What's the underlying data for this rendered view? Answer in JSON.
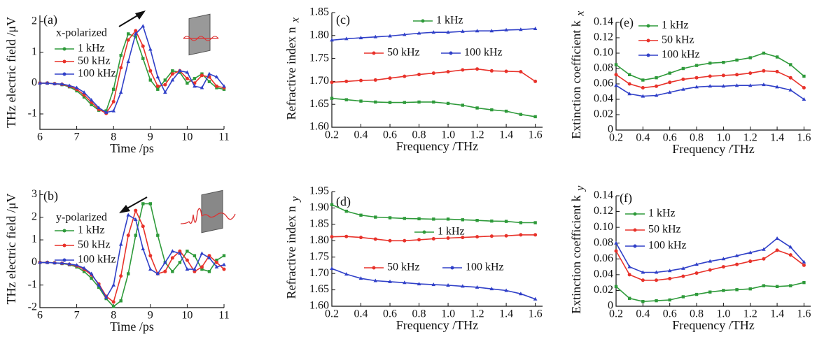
{
  "chart_data": [
    {
      "type": "line",
      "label": "(a)",
      "annotation": "x-polarized",
      "x_label": "Time /ps",
      "y_label": "THz electric field /μV",
      "x": [
        6,
        6.2,
        6.4,
        6.6,
        6.8,
        7,
        7.2,
        7.4,
        7.6,
        7.8,
        8,
        8.2,
        8.4,
        8.6,
        8.8,
        9,
        9.2,
        9.4,
        9.6,
        9.8,
        10,
        10.2,
        10.4,
        10.6,
        10.8,
        11
      ],
      "series": [
        {
          "name": "1 kHz",
          "color": "#2e9a3a",
          "values": [
            0,
            0,
            -0.02,
            -0.05,
            -0.12,
            -0.25,
            -0.45,
            -0.7,
            -0.88,
            -0.9,
            -0.2,
            0.9,
            1.6,
            1.5,
            0.8,
            0.1,
            -0.2,
            0.1,
            0.4,
            0.35,
            0,
            0.15,
            0.3,
            0.05,
            -0.15,
            -0.2
          ]
        },
        {
          "name": "50 kHz",
          "color": "#e8322a",
          "values": [
            0,
            0,
            -0.02,
            -0.04,
            -0.1,
            -0.2,
            -0.38,
            -0.62,
            -0.85,
            -0.98,
            -0.6,
            0.5,
            1.4,
            1.7,
            1.2,
            0.4,
            -0.1,
            -0.05,
            0.3,
            0.4,
            0.15,
            0,
            0.25,
            0.2,
            -0.1,
            -0.15
          ]
        },
        {
          "name": "100 kHz",
          "color": "#3040c8",
          "values": [
            0,
            0,
            -0.02,
            -0.03,
            -0.08,
            -0.15,
            -0.3,
            -0.55,
            -0.8,
            -0.95,
            -0.9,
            -0.3,
            0.7,
            1.6,
            1.85,
            1.1,
            0.2,
            -0.3,
            0.1,
            0.4,
            0.35,
            -0.1,
            -0.15,
            0.3,
            0.2,
            -0.1
          ]
        }
      ],
      "xlim": [
        6,
        11
      ],
      "xticks": [
        6,
        7,
        8,
        9,
        10,
        11
      ],
      "ylim": [
        -1.5,
        2.2
      ],
      "yticks": [
        -1,
        0,
        1,
        2
      ]
    },
    {
      "type": "line",
      "label": "(b)",
      "annotation": "y-polarized",
      "x_label": "Time /ps",
      "y_label": "THz electric field /μV",
      "x": [
        6,
        6.2,
        6.4,
        6.6,
        6.8,
        7,
        7.2,
        7.4,
        7.6,
        7.8,
        8,
        8.2,
        8.4,
        8.6,
        8.8,
        9,
        9.2,
        9.4,
        9.6,
        9.8,
        10,
        10.2,
        10.4,
        10.6,
        10.8,
        11
      ],
      "series": [
        {
          "name": "1 kHz",
          "color": "#2e9a3a",
          "values": [
            0,
            0,
            -0.02,
            -0.05,
            -0.1,
            -0.2,
            -0.4,
            -0.7,
            -1.1,
            -1.6,
            -1.95,
            -1.7,
            -0.5,
            1.2,
            2.6,
            2.6,
            1.2,
            0,
            -0.4,
            0,
            0.5,
            0.3,
            -0.3,
            -0.4,
            0.1,
            0.3
          ]
        },
        {
          "name": "50 kHz",
          "color": "#e8322a",
          "values": [
            0,
            0,
            -0.02,
            -0.04,
            -0.08,
            -0.15,
            -0.3,
            -0.55,
            -0.95,
            -1.5,
            -1.75,
            -0.6,
            1.2,
            2.3,
            1.6,
            0.3,
            -0.5,
            -0.4,
            0.2,
            0.5,
            0.1,
            -0.4,
            -0.2,
            0.3,
            0,
            -0.3
          ]
        },
        {
          "name": "100 kHz",
          "color": "#3040c8",
          "values": [
            0,
            0,
            -0.02,
            -0.03,
            -0.07,
            -0.12,
            -0.25,
            -0.5,
            -1,
            -1.55,
            -1,
            0.8,
            2.1,
            1.9,
            0.6,
            -0.3,
            -0.5,
            0,
            0.5,
            0.4,
            -0.3,
            -0.3,
            0.4,
            0.2,
            -0.2,
            -0.1
          ]
        }
      ],
      "xlim": [
        6,
        11
      ],
      "xticks": [
        6,
        7,
        8,
        9,
        10,
        11
      ],
      "ylim": [
        -2,
        3.2
      ],
      "yticks": [
        -2,
        -1,
        0,
        1,
        2,
        3
      ]
    },
    {
      "type": "line",
      "label": "(c)",
      "x_label": "Frequency /THz",
      "y_label": "Refractive index n",
      "y_label_sub": "x",
      "x": [
        0.2,
        0.3,
        0.4,
        0.5,
        0.6,
        0.7,
        0.8,
        0.9,
        1,
        1.1,
        1.2,
        1.3,
        1.4,
        1.5,
        1.6
      ],
      "series": [
        {
          "name": "1 kHz",
          "color": "#2e9a3a",
          "values": [
            1.663,
            1.66,
            1.657,
            1.655,
            1.654,
            1.654,
            1.655,
            1.655,
            1.652,
            1.648,
            1.642,
            1.638,
            1.635,
            1.628,
            1.623
          ]
        },
        {
          "name": "50 kHz",
          "color": "#e8322a",
          "values": [
            1.698,
            1.7,
            1.702,
            1.703,
            1.707,
            1.711,
            1.715,
            1.718,
            1.721,
            1.725,
            1.727,
            1.723,
            1.722,
            1.721,
            1.7
          ]
        },
        {
          "name": "100 kHz",
          "color": "#3040c8",
          "values": [
            1.79,
            1.793,
            1.795,
            1.797,
            1.799,
            1.802,
            1.805,
            1.807,
            1.807,
            1.809,
            1.81,
            1.81,
            1.812,
            1.813,
            1.815
          ]
        }
      ],
      "xlim": [
        0.2,
        1.65
      ],
      "xticks": [
        0.2,
        0.4,
        0.6,
        0.8,
        {
          "value": 1,
          "label": "1.0"
        },
        1.2,
        1.4,
        1.6
      ],
      "ylim": [
        1.6,
        1.85
      ],
      "yticks": [
        {
          "value": 1.6,
          "label": "1.60"
        },
        1.65,
        {
          "value": 1.7,
          "label": "1.70"
        },
        1.75,
        {
          "value": 1.8,
          "label": "1.80"
        },
        1.85
      ]
    },
    {
      "type": "line",
      "label": "(d)",
      "x_label": "Frequency /THz",
      "y_label": "Refractive index n",
      "y_label_sub": "y",
      "x": [
        0.2,
        0.3,
        0.4,
        0.5,
        0.6,
        0.7,
        0.8,
        0.9,
        1,
        1.1,
        1.2,
        1.3,
        1.4,
        1.5,
        1.6
      ],
      "series": [
        {
          "name": "1 kHz",
          "color": "#2e9a3a",
          "values": [
            1.91,
            1.89,
            1.878,
            1.872,
            1.87,
            1.868,
            1.867,
            1.866,
            1.866,
            1.864,
            1.862,
            1.86,
            1.859,
            1.855,
            1.855
          ]
        },
        {
          "name": "50 kHz",
          "color": "#e8322a",
          "values": [
            1.812,
            1.813,
            1.81,
            1.805,
            1.8,
            1.8,
            1.803,
            1.806,
            1.808,
            1.81,
            1.812,
            1.814,
            1.815,
            1.818,
            1.818
          ]
        },
        {
          "name": "100 kHz",
          "color": "#3040c8",
          "values": [
            1.715,
            1.698,
            1.685,
            1.678,
            1.675,
            1.672,
            1.668,
            1.666,
            1.664,
            1.661,
            1.658,
            1.653,
            1.648,
            1.638,
            1.622
          ]
        }
      ],
      "xlim": [
        0.2,
        1.65
      ],
      "xticks": [
        0.2,
        0.4,
        0.6,
        0.8,
        {
          "value": 1,
          "label": "1.0"
        },
        1.2,
        1.4,
        1.6
      ],
      "ylim": [
        1.6,
        1.95
      ],
      "yticks": [
        {
          "value": 1.6,
          "label": "1.60"
        },
        1.65,
        {
          "value": 1.7,
          "label": "1.70"
        },
        1.75,
        {
          "value": 1.8,
          "label": "1.80"
        },
        1.85,
        {
          "value": 1.9,
          "label": "1.90"
        },
        1.95
      ]
    },
    {
      "type": "line",
      "label": "(e)",
      "x_label": "Frequency /THz",
      "y_label": "Extinction coefficient k",
      "y_label_sub": "x",
      "x": [
        0.2,
        0.3,
        0.4,
        0.5,
        0.6,
        0.7,
        0.8,
        0.9,
        1,
        1.1,
        1.2,
        1.3,
        1.4,
        1.5,
        1.6
      ],
      "series": [
        {
          "name": "1 kHz",
          "color": "#2e9a3a",
          "values": [
            0.085,
            0.072,
            0.065,
            0.068,
            0.074,
            0.08,
            0.084,
            0.087,
            0.088,
            0.091,
            0.094,
            0.1,
            0.095,
            0.085,
            0.07
          ]
        },
        {
          "name": "50 kHz",
          "color": "#e8322a",
          "values": [
            0.072,
            0.06,
            0.055,
            0.057,
            0.062,
            0.066,
            0.068,
            0.07,
            0.071,
            0.072,
            0.074,
            0.077,
            0.076,
            0.068,
            0.055
          ]
        },
        {
          "name": "100 kHz",
          "color": "#3040c8",
          "values": [
            0.058,
            0.047,
            0.044,
            0.045,
            0.049,
            0.053,
            0.056,
            0.057,
            0.057,
            0.058,
            0.058,
            0.059,
            0.056,
            0.052,
            0.04
          ]
        }
      ],
      "xlim": [
        0.2,
        1.65
      ],
      "xticks": [
        0.2,
        0.4,
        0.6,
        0.8,
        {
          "value": 1,
          "label": "1.0"
        },
        1.2,
        1.4,
        1.6
      ],
      "ylim": [
        0,
        0.14
      ],
      "yticks": [
        0,
        0.02,
        0.04,
        0.06,
        0.08,
        {
          "value": 0.1,
          "label": "0.10"
        },
        0.12,
        0.14
      ]
    },
    {
      "type": "line",
      "label": "(f)",
      "x_label": "Frequency /THz",
      "y_label": "Extinction coefficient k",
      "y_label_sub": "y",
      "x": [
        0.2,
        0.3,
        0.4,
        0.5,
        0.6,
        0.7,
        0.8,
        0.9,
        1,
        1.1,
        1.2,
        1.3,
        1.4,
        1.5,
        1.6
      ],
      "series": [
        {
          "name": "1 kHz",
          "color": "#2e9a3a",
          "values": [
            0.025,
            0.01,
            0.006,
            0.007,
            0.008,
            0.012,
            0.015,
            0.018,
            0.02,
            0.021,
            0.022,
            0.026,
            0.025,
            0.026,
            0.03
          ]
        },
        {
          "name": "50 kHz",
          "color": "#e8322a",
          "values": [
            0.07,
            0.04,
            0.033,
            0.033,
            0.035,
            0.038,
            0.042,
            0.046,
            0.05,
            0.053,
            0.057,
            0.06,
            0.071,
            0.065,
            0.052
          ]
        },
        {
          "name": "100 kHz",
          "color": "#3040c8",
          "values": [
            0.08,
            0.05,
            0.043,
            0.043,
            0.045,
            0.048,
            0.053,
            0.057,
            0.06,
            0.064,
            0.068,
            0.072,
            0.086,
            0.075,
            0.056
          ]
        }
      ],
      "xlim": [
        0.2,
        1.65
      ],
      "xticks": [
        0.2,
        0.4,
        0.6,
        0.8,
        {
          "value": 1,
          "label": "1.0"
        },
        1.2,
        1.4,
        1.6
      ],
      "ylim": [
        0,
        0.14
      ],
      "yticks": [
        0,
        0.02,
        0.04,
        0.06,
        0.08,
        {
          "value": 0.1,
          "label": "0.10"
        },
        0.12,
        0.14
      ]
    }
  ]
}
